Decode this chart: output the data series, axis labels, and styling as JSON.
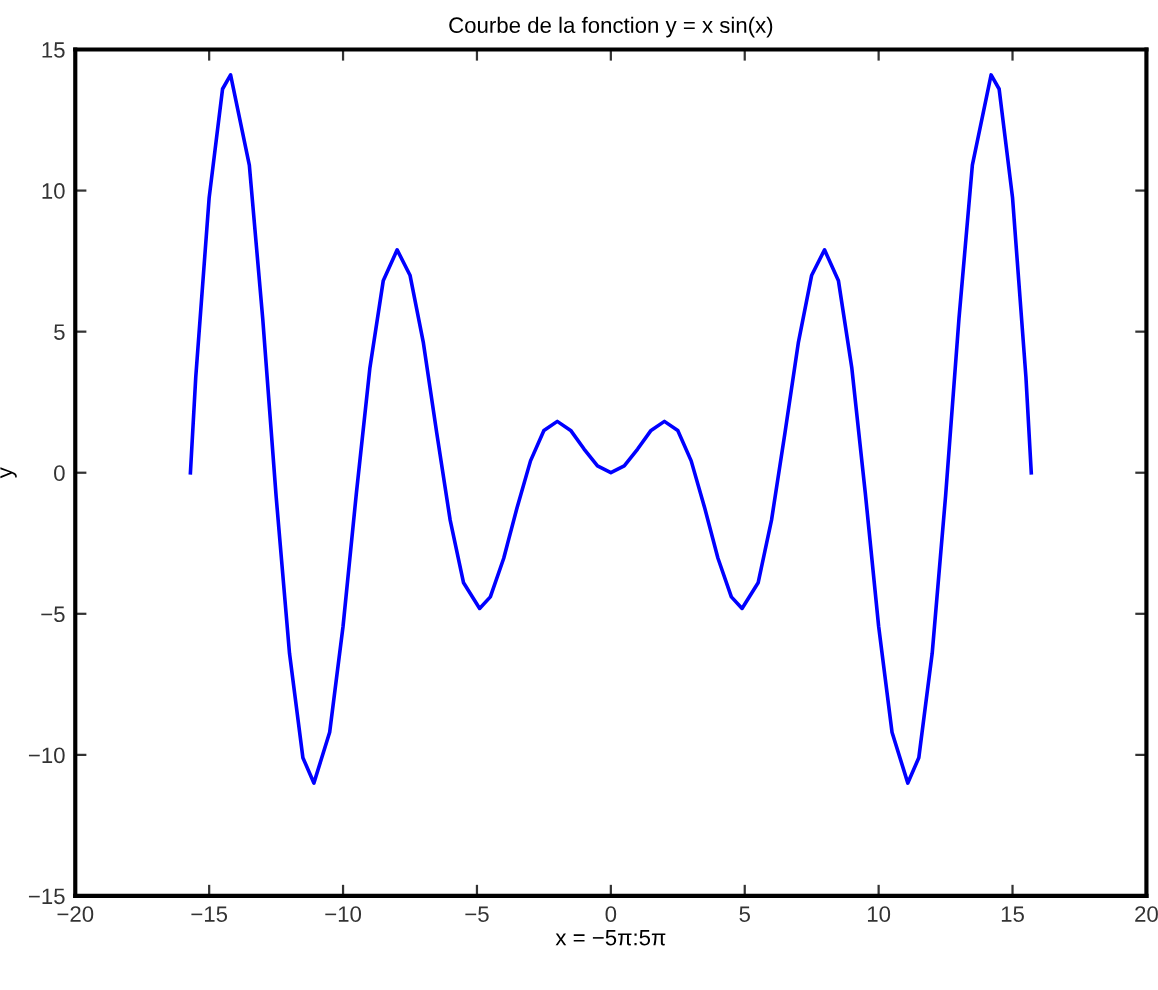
{
  "chart_data": {
    "type": "line",
    "title": "Courbe de la fonction y = x sin(x)",
    "xlabel": "x = −5π:5π",
    "ylabel": "y",
    "series": [
      {
        "color": "#0000ff",
        "x": [
          -15.7,
          -15.5,
          -15,
          -14.5,
          -14.2,
          -13.5,
          -13,
          -12.5,
          -12,
          -11.5,
          -11.09,
          -10.5,
          -10,
          -9.5,
          -9,
          -8.5,
          -7.98,
          -7.5,
          -7,
          -6.5,
          -6,
          -5.5,
          -4.9,
          -4.5,
          -4,
          -3.5,
          -3,
          -2.5,
          -2,
          -1.5,
          -1,
          -0.5,
          0,
          0.5,
          1,
          1.5,
          2,
          2.5,
          3,
          3.5,
          4,
          4.5,
          4.9,
          5.5,
          6,
          6.5,
          7,
          7.5,
          7.98,
          8.5,
          9,
          9.5,
          10,
          10.5,
          11.09,
          11.5,
          12,
          12.5,
          13,
          13.5,
          14.2,
          14.5,
          15,
          15.5,
          15.7
        ],
        "values": [
          0,
          3.4,
          9.75,
          13.6,
          14.1,
          10.9,
          5.46,
          -0.83,
          -6.4,
          -10.1,
          -11.0,
          -9.2,
          -5.44,
          -0.7,
          3.7,
          6.8,
          7.9,
          7.0,
          4.6,
          1.4,
          -1.68,
          -3.9,
          -4.81,
          -4.4,
          -3.03,
          -1.23,
          0.42,
          1.5,
          1.82,
          1.5,
          0.84,
          0.24,
          0,
          0.24,
          0.84,
          1.5,
          1.82,
          1.5,
          0.42,
          -1.23,
          -3.03,
          -4.4,
          -4.81,
          -3.9,
          -1.68,
          1.4,
          4.6,
          7.0,
          7.9,
          6.8,
          3.7,
          -0.7,
          -5.44,
          -9.2,
          -11.0,
          -10.1,
          -6.4,
          -0.83,
          5.46,
          10.9,
          14.1,
          13.6,
          9.75,
          3.4,
          0
        ]
      }
    ],
    "xlim": [
      -20,
      20
    ],
    "ylim": [
      -15,
      15
    ],
    "xticks": [
      {
        "value": -20,
        "label": "−20"
      },
      {
        "value": -15,
        "label": "−15"
      },
      {
        "value": -10,
        "label": "−10"
      },
      {
        "value": -5,
        "label": "−5"
      },
      0,
      5,
      10,
      15,
      20
    ],
    "yticks": [
      {
        "value": -15,
        "label": "−15"
      },
      {
        "value": -10,
        "label": "−10"
      },
      {
        "value": -5,
        "label": "−5"
      },
      0,
      5,
      10,
      15
    ],
    "grid": false,
    "marker": "none",
    "line_style": "solid"
  }
}
